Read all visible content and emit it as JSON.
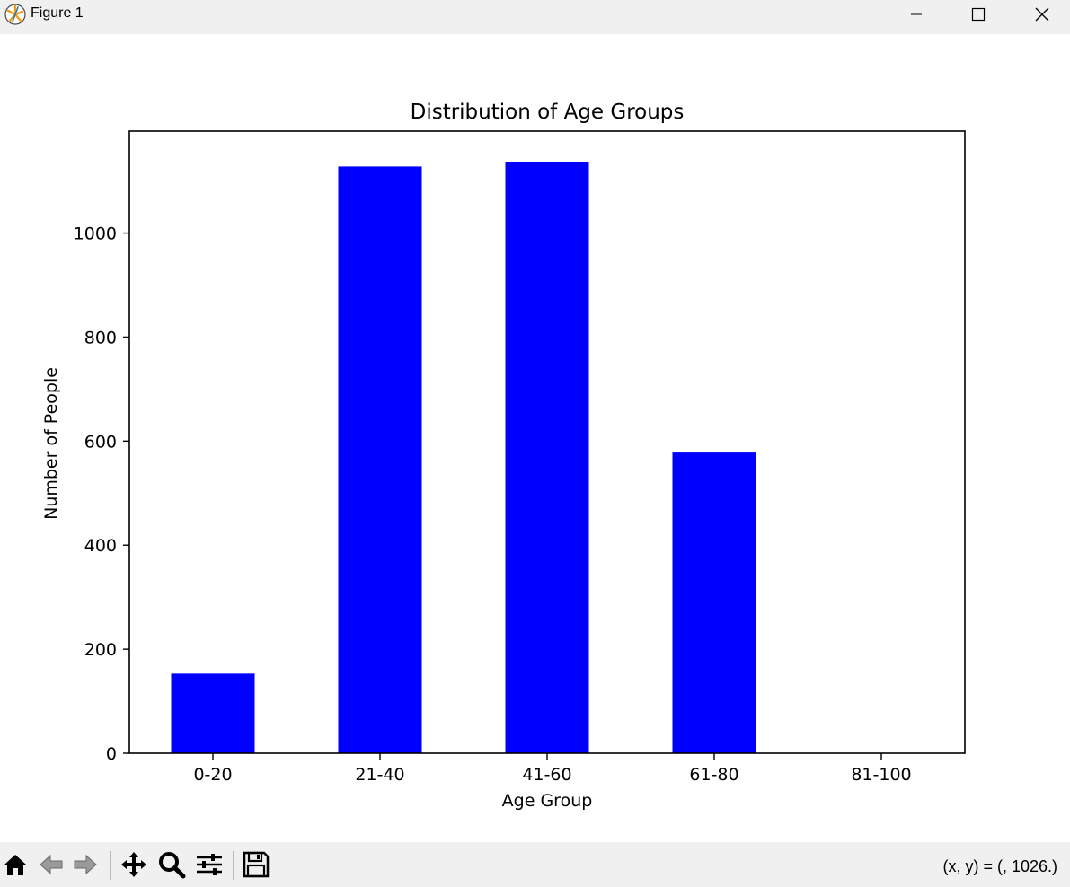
{
  "window": {
    "title": "Figure 1"
  },
  "status": {
    "coords": "(x, y) = (, 1026.)"
  },
  "chart_data": {
    "type": "bar",
    "title": "Distribution of Age Groups",
    "xlabel": "Age Group",
    "ylabel": "Number of People",
    "categories": [
      "0-20",
      "21-40",
      "41-60",
      "61-80",
      "81-100"
    ],
    "values": [
      153,
      1128,
      1137,
      578,
      0
    ],
    "ylim": [
      0,
      1196
    ],
    "yticks": [
      0,
      200,
      400,
      600,
      800,
      1000
    ],
    "bar_color": "#0000ff",
    "grid": false
  },
  "toolbar": {
    "icons": [
      "home-icon",
      "back-icon",
      "forward-icon",
      "pan-icon",
      "zoom-icon",
      "configure-subplots-icon",
      "save-icon"
    ]
  }
}
